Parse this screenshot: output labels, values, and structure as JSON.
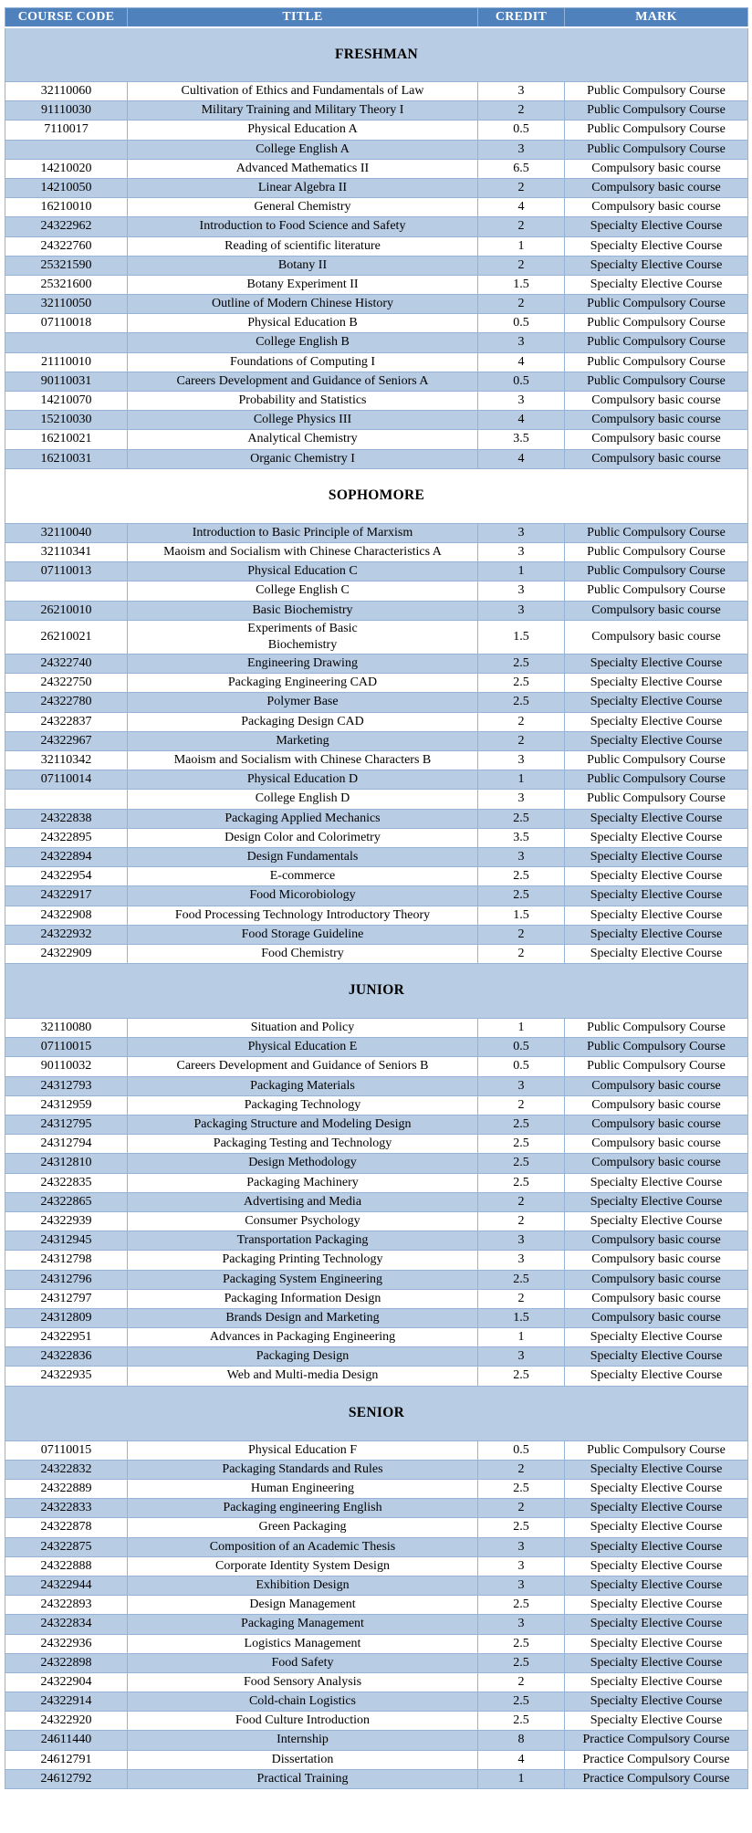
{
  "colors": {
    "header_bg": "#4f81bd",
    "header_fg": "#ffffff",
    "shaded_row": "#b8cce4",
    "border": "#95b3d7",
    "text": "#000000",
    "page_bg": "#ffffff"
  },
  "table": {
    "headers": [
      "COURSE CODE",
      "TITLE",
      "CREDIT",
      "MARK"
    ],
    "sections": [
      {
        "name": "FRESHMAN",
        "band_shaded": true,
        "first_row_shaded": false,
        "rows": [
          {
            "code": "32110060",
            "title": "Cultivation of Ethics and Fundamentals of Law",
            "credit": "3",
            "mark": "Public Compulsory Course"
          },
          {
            "code": "91110030",
            "title": "Military Training and Military Theory I",
            "credit": "2",
            "mark": "Public Compulsory Course"
          },
          {
            "code": "7110017",
            "title": "Physical Education A",
            "credit": "0.5",
            "mark": "Public Compulsory Course"
          },
          {
            "code": "",
            "title": "College English A",
            "credit": "3",
            "mark": "Public Compulsory Course"
          },
          {
            "code": "14210020",
            "title": "Advanced Mathematics II",
            "credit": "6.5",
            "mark": "Compulsory basic course"
          },
          {
            "code": "14210050",
            "title": "Linear Algebra II",
            "credit": "2",
            "mark": "Compulsory basic course"
          },
          {
            "code": "16210010",
            "title": "General Chemistry",
            "credit": "4",
            "mark": "Compulsory basic course"
          },
          {
            "code": "24322962",
            "title": "Introduction to Food Science and Safety",
            "credit": "2",
            "mark": "Specialty Elective Course"
          },
          {
            "code": "24322760",
            "title": "Reading of scientific literature",
            "credit": "1",
            "mark": "Specialty Elective Course"
          },
          {
            "code": "25321590",
            "title": "Botany II",
            "credit": "2",
            "mark": "Specialty Elective Course"
          },
          {
            "code": "25321600",
            "title": "Botany Experiment II",
            "credit": "1.5",
            "mark": "Specialty Elective Course"
          },
          {
            "code": "32110050",
            "title": "Outline of Modern Chinese History",
            "credit": "2",
            "mark": "Public Compulsory Course"
          },
          {
            "code": "07110018",
            "title": "Physical Education B",
            "credit": "0.5",
            "mark": "Public Compulsory Course"
          },
          {
            "code": "",
            "title": "College English B",
            "credit": "3",
            "mark": "Public Compulsory Course"
          },
          {
            "code": "21110010",
            "title": "Foundations of Computing I",
            "credit": "4",
            "mark": "Public Compulsory Course"
          },
          {
            "code": "90110031",
            "title": "Careers Development and Guidance of Seniors A",
            "credit": "0.5",
            "mark": "Public Compulsory Course"
          },
          {
            "code": "14210070",
            "title": "Probability and Statistics",
            "credit": "3",
            "mark": "Compulsory basic course"
          },
          {
            "code": "15210030",
            "title": "College Physics III",
            "credit": "4",
            "mark": "Compulsory basic course"
          },
          {
            "code": "16210021",
            "title": "Analytical Chemistry",
            "credit": "3.5",
            "mark": "Compulsory basic course"
          },
          {
            "code": "16210031",
            "title": "Organic Chemistry I",
            "credit": "4",
            "mark": "Compulsory basic course"
          }
        ]
      },
      {
        "name": "SOPHOMORE",
        "band_shaded": false,
        "first_row_shaded": true,
        "rows": [
          {
            "code": "32110040",
            "title": "Introduction to Basic Principle of Marxism",
            "credit": "3",
            "mark": "Public Compulsory Course"
          },
          {
            "code": "32110341",
            "title": "Maoism and Socialism with Chinese Characteristics A",
            "credit": "3",
            "mark": "Public Compulsory Course"
          },
          {
            "code": "07110013",
            "title": "Physical Education C",
            "credit": "1",
            "mark": "Public Compulsory Course"
          },
          {
            "code": "",
            "title": "College English C",
            "credit": "3",
            "mark": "Public Compulsory Course"
          },
          {
            "code": "26210010",
            "title": "Basic Biochemistry",
            "credit": "3",
            "mark": "Compulsory basic course"
          },
          {
            "code": "26210021",
            "title": "Experiments of Basic\nBiochemistry",
            "credit": "1.5",
            "mark": "Compulsory basic course"
          },
          {
            "code": "24322740",
            "title": "Engineering Drawing",
            "credit": "2.5",
            "mark": "Specialty Elective Course"
          },
          {
            "code": "24322750",
            "title": "Packaging Engineering CAD",
            "credit": "2.5",
            "mark": "Specialty Elective Course"
          },
          {
            "code": "24322780",
            "title": "Polymer Base",
            "credit": "2.5",
            "mark": "Specialty Elective Course"
          },
          {
            "code": "24322837",
            "title": "Packaging Design CAD",
            "credit": "2",
            "mark": "Specialty Elective Course"
          },
          {
            "code": "24322967",
            "title": "Marketing",
            "credit": "2",
            "mark": "Specialty Elective Course"
          },
          {
            "code": "32110342",
            "title": "Maoism and Socialism with Chinese Characters B",
            "credit": "3",
            "mark": "Public Compulsory Course"
          },
          {
            "code": "07110014",
            "title": "Physical Education D",
            "credit": "1",
            "mark": "Public Compulsory Course"
          },
          {
            "code": "",
            "title": "College English D",
            "credit": "3",
            "mark": "Public Compulsory Course"
          },
          {
            "code": "24322838",
            "title": "Packaging Applied Mechanics",
            "credit": "2.5",
            "mark": "Specialty Elective Course"
          },
          {
            "code": "24322895",
            "title": "Design Color and Colorimetry",
            "credit": "3.5",
            "mark": "Specialty Elective Course"
          },
          {
            "code": "24322894",
            "title": "Design Fundamentals",
            "credit": "3",
            "mark": "Specialty Elective Course"
          },
          {
            "code": "24322954",
            "title": "E-commerce",
            "credit": "2.5",
            "mark": "Specialty Elective Course"
          },
          {
            "code": "24322917",
            "title": "Food Micorobiology",
            "credit": "2.5",
            "mark": "Specialty Elective Course"
          },
          {
            "code": "24322908",
            "title": "Food Processing Technology Introductory Theory",
            "credit": "1.5",
            "mark": "Specialty Elective Course"
          },
          {
            "code": "24322932",
            "title": "Food Storage Guideline",
            "credit": "2",
            "mark": "Specialty Elective Course"
          },
          {
            "code": "24322909",
            "title": "Food Chemistry",
            "credit": "2",
            "mark": "Specialty Elective Course"
          }
        ]
      },
      {
        "name": "JUNIOR",
        "band_shaded": true,
        "first_row_shaded": false,
        "rows": [
          {
            "code": "32110080",
            "title": "Situation and Policy",
            "credit": "1",
            "mark": "Public Compulsory Course"
          },
          {
            "code": "07110015",
            "title": "Physical Education E",
            "credit": "0.5",
            "mark": "Public Compulsory Course"
          },
          {
            "code": "90110032",
            "title": "Careers Development and Guidance of Seniors B",
            "credit": "0.5",
            "mark": "Public Compulsory Course"
          },
          {
            "code": "24312793",
            "title": "Packaging Materials",
            "credit": "3",
            "mark": "Compulsory basic course"
          },
          {
            "code": "24312959",
            "title": "Packaging Technology",
            "credit": "2",
            "mark": "Compulsory basic course"
          },
          {
            "code": "24312795",
            "title": "Packaging Structure and Modeling Design",
            "credit": "2.5",
            "mark": "Compulsory basic course"
          },
          {
            "code": "24312794",
            "title": "Packaging Testing and Technology",
            "credit": "2.5",
            "mark": "Compulsory basic course"
          },
          {
            "code": "24312810",
            "title": "Design Methodology",
            "credit": "2.5",
            "mark": "Compulsory basic course"
          },
          {
            "code": "24322835",
            "title": "Packaging Machinery",
            "credit": "2.5",
            "mark": "Specialty Elective Course"
          },
          {
            "code": "24322865",
            "title": "Advertising and Media",
            "credit": "2",
            "mark": "Specialty Elective Course"
          },
          {
            "code": "24322939",
            "title": "Consumer Psychology",
            "credit": "2",
            "mark": "Specialty Elective Course"
          },
          {
            "code": "24312945",
            "title": "Transportation Packaging",
            "credit": "3",
            "mark": "Compulsory basic course"
          },
          {
            "code": "24312798",
            "title": "Packaging Printing Technology",
            "credit": "3",
            "mark": "Compulsory basic course"
          },
          {
            "code": "24312796",
            "title": "Packaging System Engineering",
            "credit": "2.5",
            "mark": "Compulsory basic course"
          },
          {
            "code": "24312797",
            "title": "Packaging Information Design",
            "credit": "2",
            "mark": "Compulsory basic course"
          },
          {
            "code": "24312809",
            "title": "Brands Design and Marketing",
            "credit": "1.5",
            "mark": "Compulsory basic course"
          },
          {
            "code": "24322951",
            "title": "Advances in Packaging Engineering",
            "credit": "1",
            "mark": "Specialty Elective Course"
          },
          {
            "code": "24322836",
            "title": "Packaging Design",
            "credit": "3",
            "mark": "Specialty Elective Course"
          },
          {
            "code": "24322935",
            "title": "Web and Multi-media Design",
            "credit": "2.5",
            "mark": "Specialty Elective Course"
          }
        ]
      },
      {
        "name": "SENIOR",
        "band_shaded": true,
        "first_row_shaded": false,
        "rows": [
          {
            "code": "07110015",
            "title": "Physical Education F",
            "credit": "0.5",
            "mark": "Public Compulsory Course"
          },
          {
            "code": "24322832",
            "title": "Packaging Standards and Rules",
            "credit": "2",
            "mark": "Specialty Elective Course"
          },
          {
            "code": "24322889",
            "title": "Human Engineering",
            "credit": "2.5",
            "mark": "Specialty Elective Course"
          },
          {
            "code": "24322833",
            "title": "Packaging engineering English",
            "credit": "2",
            "mark": "Specialty Elective Course"
          },
          {
            "code": "24322878",
            "title": "Green Packaging",
            "credit": "2.5",
            "mark": "Specialty Elective Course"
          },
          {
            "code": "24322875",
            "title": "Composition of an Academic Thesis",
            "credit": "3",
            "mark": "Specialty Elective Course"
          },
          {
            "code": "24322888",
            "title": "Corporate Identity System Design",
            "credit": "3",
            "mark": "Specialty Elective Course"
          },
          {
            "code": "24322944",
            "title": "Exhibition Design",
            "credit": "3",
            "mark": "Specialty Elective Course"
          },
          {
            "code": "24322893",
            "title": "Design Management",
            "credit": "2.5",
            "mark": "Specialty Elective Course"
          },
          {
            "code": "24322834",
            "title": "Packaging Management",
            "credit": "3",
            "mark": "Specialty Elective Course"
          },
          {
            "code": "24322936",
            "title": "Logistics Management",
            "credit": "2.5",
            "mark": "Specialty Elective Course"
          },
          {
            "code": "24322898",
            "title": "Food Safety",
            "credit": "2.5",
            "mark": "Specialty Elective Course"
          },
          {
            "code": "24322904",
            "title": "Food Sensory Analysis",
            "credit": "2",
            "mark": "Specialty Elective Course"
          },
          {
            "code": "24322914",
            "title": "Cold-chain Logistics",
            "credit": "2.5",
            "mark": "Specialty Elective Course"
          },
          {
            "code": "24322920",
            "title": "Food Culture Introduction",
            "credit": "2.5",
            "mark": "Specialty Elective Course"
          },
          {
            "code": "24611440",
            "title": "Internship",
            "credit": "8",
            "mark": "Practice Compulsory Course"
          },
          {
            "code": "24612791",
            "title": "Dissertation",
            "credit": "4",
            "mark": "Practice Compulsory Course"
          },
          {
            "code": "24612792",
            "title": "Practical Training",
            "credit": "1",
            "mark": "Practice Compulsory Course"
          }
        ]
      }
    ]
  }
}
